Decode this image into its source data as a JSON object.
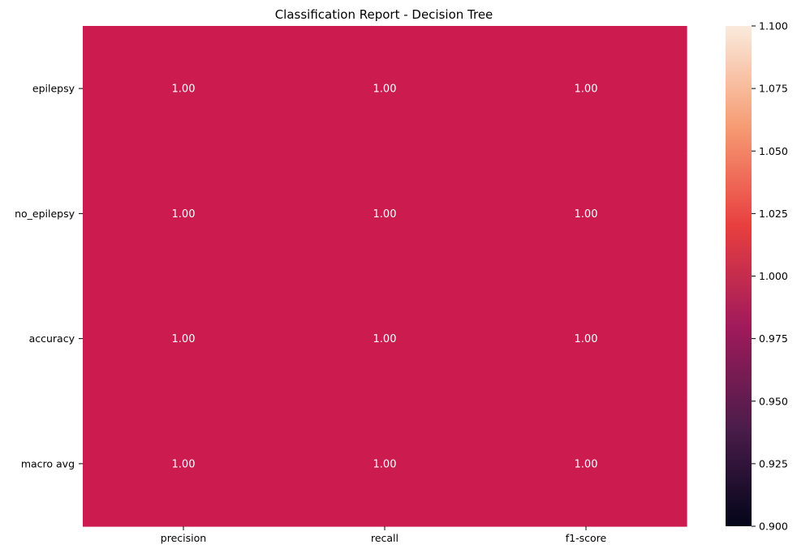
{
  "chart_data": {
    "type": "heatmap",
    "title": "Classification Report - Decision Tree",
    "xlabel": "",
    "ylabel": "",
    "columns": [
      "precision",
      "recall",
      "f1-score"
    ],
    "rows": [
      "epilepsy",
      "no_epilepsy",
      "accuracy",
      "macro avg"
    ],
    "values": [
      [
        1.0,
        1.0,
        1.0
      ],
      [
        1.0,
        1.0,
        1.0
      ],
      [
        1.0,
        1.0,
        1.0
      ],
      [
        1.0,
        1.0,
        1.0
      ]
    ],
    "cell_labels": [
      [
        "1.00",
        "1.00",
        "1.00"
      ],
      [
        "1.00",
        "1.00",
        "1.00"
      ],
      [
        "1.00",
        "1.00",
        "1.00"
      ],
      [
        "1.00",
        "1.00",
        "1.00"
      ]
    ],
    "cell_color": "#cb1b4f",
    "colorbar": {
      "range": [
        0.9,
        1.1
      ],
      "ticks": [
        "0.900",
        "0.925",
        "0.950",
        "0.975",
        "1.000",
        "1.025",
        "1.050",
        "1.075",
        "1.100"
      ],
      "colors": [
        "#03051a",
        "#4c1d4b",
        "#a11a5b",
        "#e83f3f",
        "#f69c73",
        "#faebdd"
      ]
    }
  }
}
